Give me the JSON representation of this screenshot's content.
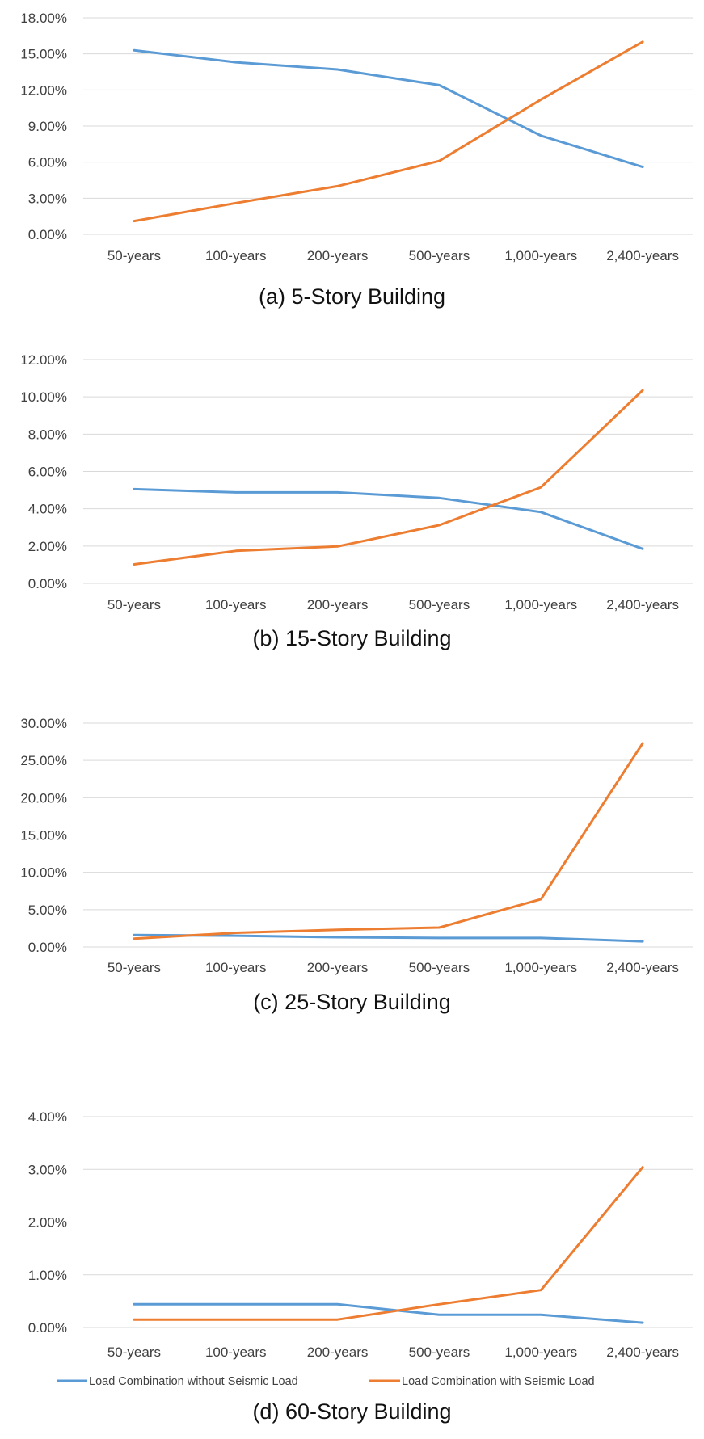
{
  "chart_data": [
    {
      "type": "line",
      "caption": "(a) 5-Story Building",
      "categories": [
        "50-years",
        "100-years",
        "200-years",
        "500-years",
        "1,000-years",
        "2,400-years"
      ],
      "y_tick_labels": [
        "0.00%",
        "3.00%",
        "6.00%",
        "9.00%",
        "12.00%",
        "15.00%",
        "18.00%"
      ],
      "ylim": [
        0,
        18
      ],
      "y_unit": "%",
      "grid": true,
      "legend_position": "bottom",
      "series": [
        {
          "name": "Load Combination without Seismic Load",
          "color": "#5B9BD5",
          "values": [
            15.3,
            14.3,
            13.7,
            12.4,
            8.2,
            5.6
          ]
        },
        {
          "name": "Load Combination with Seismic Load",
          "color": "#ED7D31",
          "values": [
            1.1,
            2.6,
            4.0,
            6.1,
            11.2,
            16.0
          ]
        }
      ]
    },
    {
      "type": "line",
      "caption": "(b) 15-Story Building",
      "categories": [
        "50-years",
        "100-years",
        "200-years",
        "500-years",
        "1,000-years",
        "2,400-years"
      ],
      "y_tick_labels": [
        "0.00%",
        "2.00%",
        "4.00%",
        "6.00%",
        "8.00%",
        "10.00%",
        "12.00%"
      ],
      "ylim": [
        0,
        12
      ],
      "y_unit": "%",
      "grid": true,
      "legend_position": "bottom",
      "series": [
        {
          "name": "Load Combination without Seismic Load",
          "color": "#5B9BD5",
          "values": [
            5.05,
            4.88,
            4.88,
            4.58,
            3.82,
            1.85
          ]
        },
        {
          "name": "Load Combination with Seismic Load",
          "color": "#ED7D31",
          "values": [
            1.02,
            1.74,
            1.98,
            3.12,
            5.15,
            10.35
          ]
        }
      ]
    },
    {
      "type": "line",
      "caption": "(c) 25-Story Building",
      "categories": [
        "50-years",
        "100-years",
        "200-years",
        "500-years",
        "1,000-years",
        "2,400-years"
      ],
      "y_tick_labels": [
        "0.00%",
        "5.00%",
        "10.00%",
        "15.00%",
        "20.00%",
        "25.00%",
        "30.00%"
      ],
      "ylim": [
        0,
        30
      ],
      "y_unit": "%",
      "grid": true,
      "legend_position": "bottom",
      "series": [
        {
          "name": "Load Combination without Seismic Load",
          "color": "#5B9BD5",
          "values": [
            1.6,
            1.5,
            1.3,
            1.2,
            1.2,
            0.75
          ]
        },
        {
          "name": "Load Combination with Seismic Load",
          "color": "#ED7D31",
          "values": [
            1.1,
            1.9,
            2.3,
            2.6,
            6.4,
            27.3
          ]
        }
      ]
    },
    {
      "type": "line",
      "caption": "(d) 60-Story Building",
      "categories": [
        "50-years",
        "100-years",
        "200-years",
        "500-years",
        "1,000-years",
        "2,400-years"
      ],
      "y_tick_labels": [
        "0.00%",
        "1.00%",
        "2.00%",
        "3.00%",
        "4.00%"
      ],
      "ylim": [
        0,
        4
      ],
      "y_unit": "%",
      "grid": true,
      "legend_position": "bottom",
      "series": [
        {
          "name": "Load Combination without Seismic Load",
          "color": "#5B9BD5",
          "values": [
            0.44,
            0.44,
            0.44,
            0.24,
            0.24,
            0.09
          ]
        },
        {
          "name": "Load Combination with Seismic Load",
          "color": "#ED7D31",
          "values": [
            0.15,
            0.15,
            0.15,
            0.44,
            0.71,
            3.04
          ]
        }
      ]
    }
  ],
  "colors": {
    "gridline": "#D9D9D9",
    "text": "#404040",
    "caption": "#111111"
  }
}
